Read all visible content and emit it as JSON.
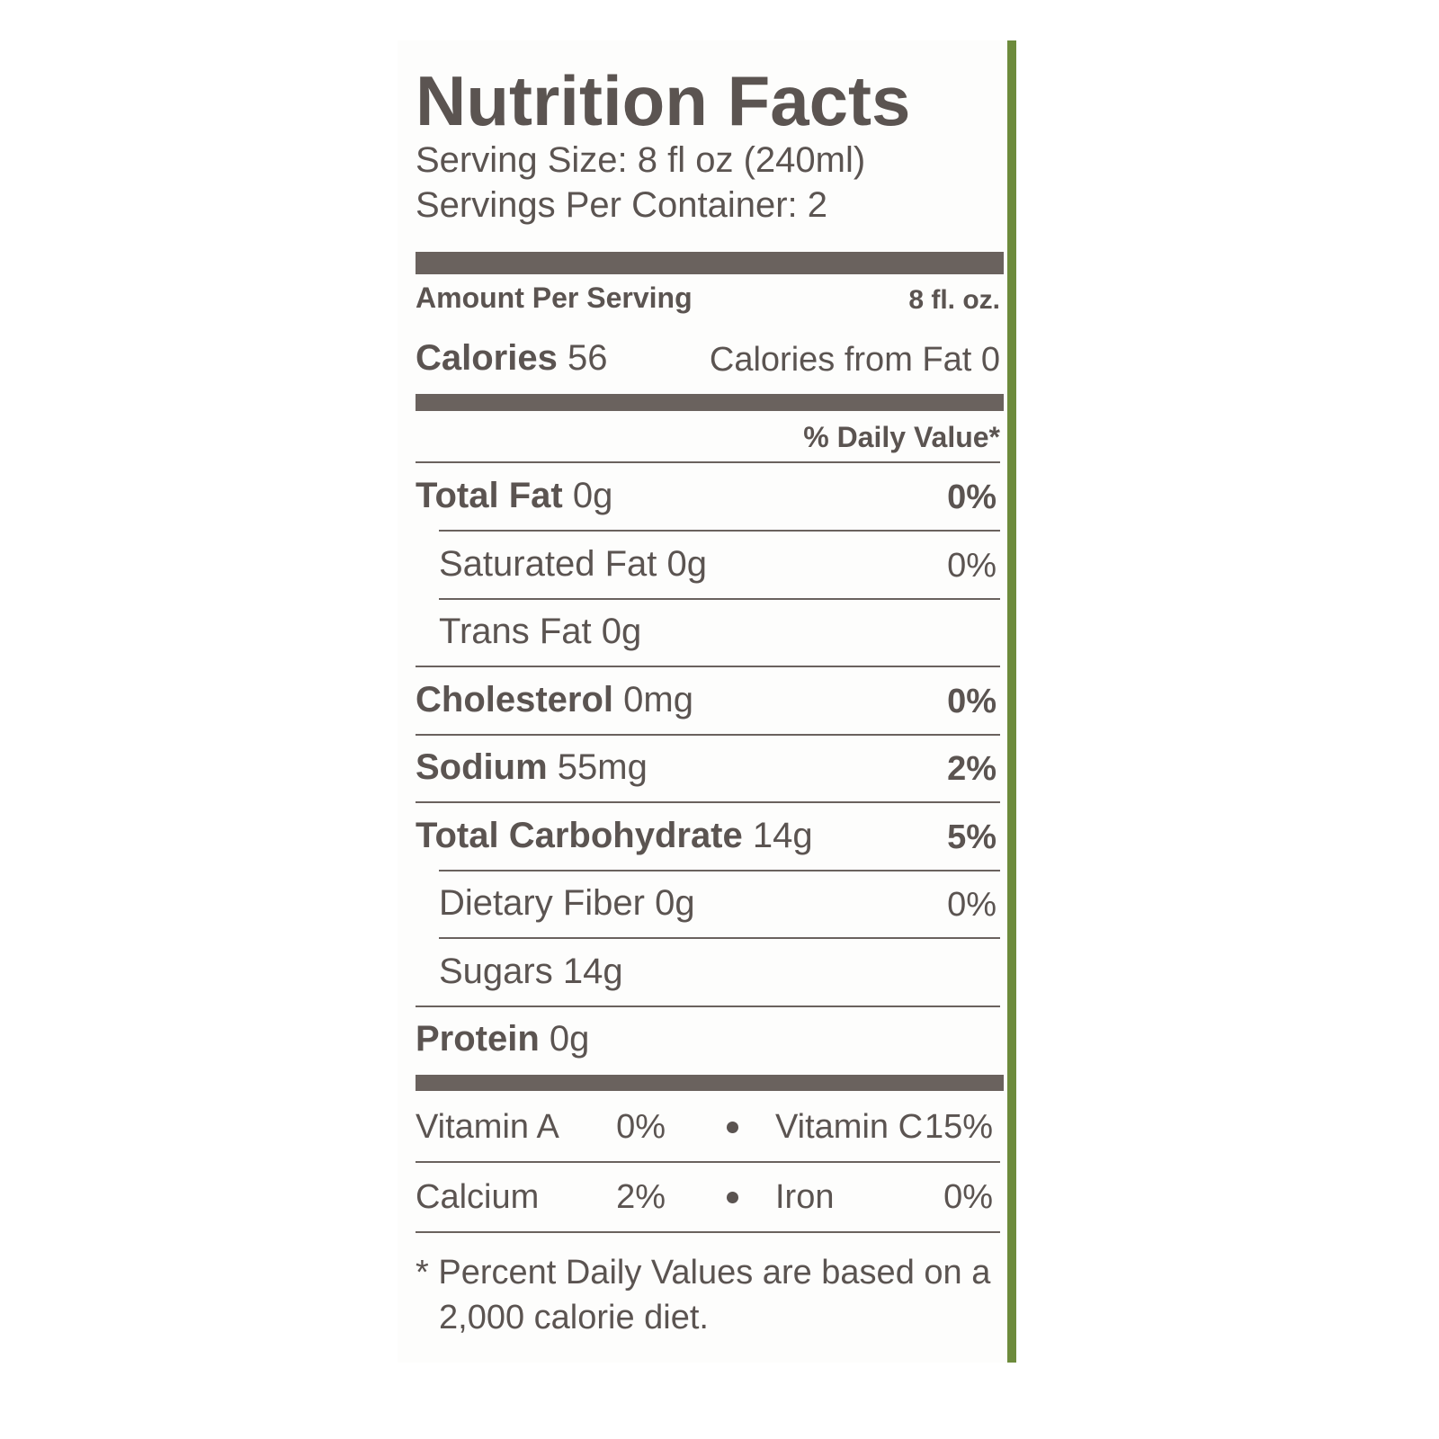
{
  "label": {
    "title": "Nutrition Facts",
    "serving_size": "Serving Size: 8 fl oz (240ml)",
    "servings_per_container": "Servings Per Container: 2",
    "amount_per_serving": "Amount Per Serving",
    "serving_amount": "8 fl. oz.",
    "calories": {
      "label": "Calories",
      "value": "56"
    },
    "calories_from_fat": "Calories from Fat 0",
    "daily_value_header": "% Daily Value*",
    "nutrients": [
      {
        "name": "Total Fat",
        "amount": "0g",
        "dv": "0%",
        "sub": false
      },
      {
        "name": "Saturated Fat",
        "amount": "0g",
        "dv": "0%",
        "sub": true
      },
      {
        "name": "Trans Fat",
        "amount": "0g",
        "sub": true
      },
      {
        "name": "Cholesterol",
        "amount": "0mg",
        "dv": "0%",
        "sub": false
      },
      {
        "name": "Sodium",
        "amount": "55mg",
        "dv": "2%",
        "sub": false
      },
      {
        "name": "Total Carbohydrate",
        "amount": "14g",
        "dv": "5%",
        "sub": false
      },
      {
        "name": "Dietary Fiber",
        "amount": "0g",
        "dv": "0%",
        "sub": true
      },
      {
        "name": "Sugars",
        "amount": "14g",
        "sub": true
      },
      {
        "name": "Protein",
        "amount": "0g",
        "sub": false
      }
    ],
    "vitamins": [
      [
        {
          "name": "Vitamin A",
          "dv": "0%"
        },
        {
          "name": "Vitamin C",
          "dv": "15%"
        }
      ],
      [
        {
          "name": "Calcium",
          "dv": "2%"
        },
        {
          "name": "Iron",
          "dv": "0%"
        }
      ]
    ],
    "footnote": "* Percent Daily Values are based on a 2,000 calorie diet."
  }
}
